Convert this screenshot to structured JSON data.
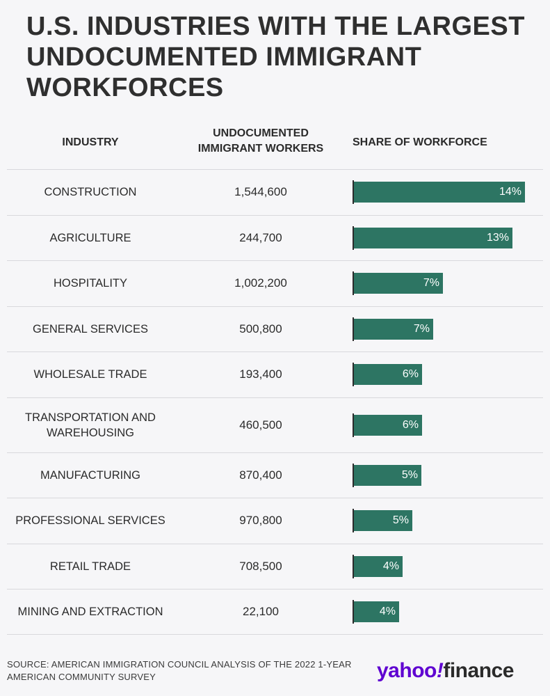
{
  "title": "U.S. INDUSTRIES WITH THE LARGEST UNDOCUMENTED IMMIGRANT WORKFORCES",
  "headers": {
    "industry": "INDUSTRY",
    "workers_line1": "UNDOCUMENTED",
    "workers_line2": "IMMIGRANT WORKERS",
    "share": "SHARE OF WORKFORCE"
  },
  "chart_data": {
    "type": "bar",
    "title": "U.S. INDUSTRIES WITH THE LARGEST UNDOCUMENTED IMMIGRANT WORKFORCES",
    "categories": [
      "CONSTRUCTION",
      "AGRICULTURE",
      "HOSPITALITY",
      "GENERAL SERVICES",
      "WHOLESALE TRADE",
      "TRANSPORTATION AND WAREHOUSING",
      "MANUFACTURING",
      "PROFESSIONAL SERVICES",
      "RETAIL TRADE",
      "MINING AND EXTRACTION"
    ],
    "workers": [
      "1,544,600",
      "244,700",
      "1,002,200",
      "500,800",
      "193,400",
      "460,500",
      "870,400",
      "970,800",
      "708,500",
      "22,100"
    ],
    "series": [
      {
        "name": "SHARE OF WORKFORCE",
        "values": [
          14,
          13,
          7,
          7,
          6,
          6,
          5,
          5,
          4,
          4
        ]
      }
    ],
    "bar_value_labels": [
      "14%",
      "13%",
      "7%",
      "7%",
      "6%",
      "6%",
      "5%",
      "5%",
      "4%",
      "4%"
    ],
    "bar_lengths_units": [
      14.0,
      13.0,
      7.3,
      6.5,
      5.6,
      5.6,
      5.5,
      4.8,
      4.0,
      3.7
    ],
    "orientation": "horizontal",
    "xlim": [
      0,
      14
    ],
    "bar_color": "#2d7563"
  },
  "source": "SOURCE: AMERICAN IMMIGRATION COUNCIL ANALYSIS OF THE 2022 1-YEAR AMERICAN COMMUNITY SURVEY",
  "logo": {
    "brand": "yahoo",
    "mark": "!",
    "product": "finance"
  }
}
